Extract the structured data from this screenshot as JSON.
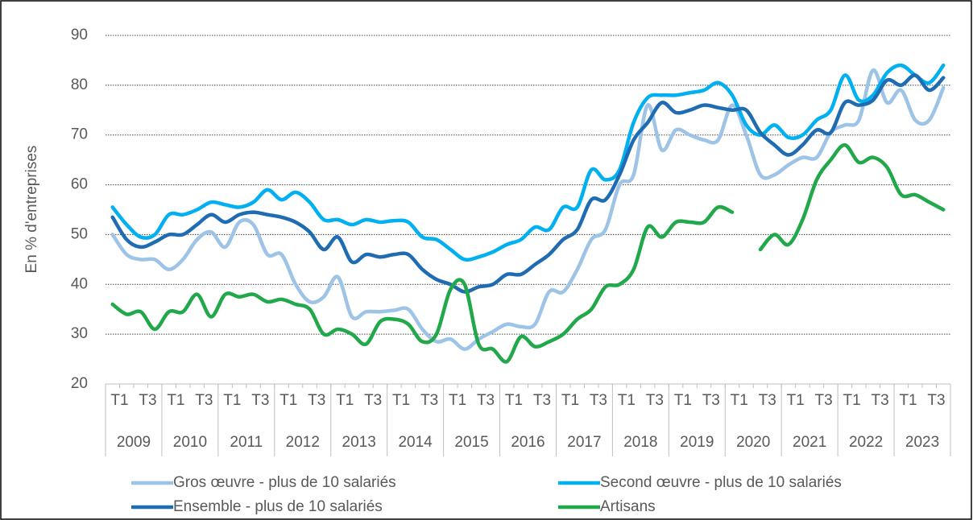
{
  "chart_data": {
    "type": "line",
    "y_axis_label": "En % d'entreprises",
    "categories": [
      "T1",
      null,
      "T3",
      null,
      "T1",
      null,
      "T3",
      null,
      "T1",
      null,
      "T3",
      null,
      "T1",
      null,
      "T3",
      null,
      "T1",
      null,
      "T3",
      null,
      "T1",
      null,
      "T3",
      null,
      "T1",
      null,
      "T3",
      null,
      "T1",
      null,
      "T3",
      null,
      "T1",
      null,
      "T3",
      null,
      "T1",
      null,
      "T3",
      null,
      "T1",
      null,
      "T3",
      null,
      "T1",
      null,
      "T3",
      null,
      "T1",
      null,
      "T3",
      null,
      "T1",
      null,
      "T3",
      null,
      "T1",
      null,
      "T3",
      null
    ],
    "years": [
      "2009",
      "2010",
      "2011",
      "2012",
      "2013",
      "2014",
      "2015",
      "2016",
      "2017",
      "2018",
      "2019",
      "2020",
      "2021",
      "2022",
      "2023"
    ],
    "ylim": [
      20,
      90
    ],
    "yticks": [
      20,
      30,
      40,
      50,
      60,
      70,
      80,
      90
    ],
    "grid": true,
    "series": [
      {
        "name": "Gros œuvre - plus de 10 salariés",
        "color": "#9dc3e6",
        "values": [
          50,
          46,
          45,
          45,
          43,
          45,
          49,
          50.5,
          47.5,
          52.5,
          52,
          46,
          46,
          40,
          36.5,
          37.5,
          41.5,
          33.5,
          34.5,
          34.5,
          34.8,
          35,
          31,
          28.5,
          29,
          27,
          29,
          30.5,
          32,
          31.5,
          32,
          38.5,
          38.5,
          43,
          49,
          51,
          60,
          62,
          76,
          67,
          71,
          70,
          69,
          69,
          76,
          70,
          62,
          62,
          64,
          65.5,
          65.5,
          70.5,
          72,
          73,
          83,
          76.5,
          79,
          73,
          73,
          79.5
        ]
      },
      {
        "name": "Second œuvre - plus de 10 salariés",
        "color": "#00b0f0",
        "values": [
          55.5,
          52,
          49.5,
          50,
          54,
          54,
          55,
          56.5,
          56,
          55.5,
          56.5,
          59,
          57,
          58.5,
          56.5,
          53,
          53,
          52,
          53,
          52.5,
          52.8,
          52.5,
          49.5,
          49,
          47,
          45,
          45.5,
          46.5,
          48,
          49,
          51.5,
          51,
          55.5,
          55.5,
          63,
          61,
          63,
          72.5,
          77.5,
          78,
          78,
          78.5,
          79,
          80.5,
          78,
          72,
          70,
          72,
          69.5,
          70,
          73,
          75,
          82,
          77,
          78,
          82.5,
          84,
          82,
          80.5,
          84
        ]
      },
      {
        "name": "Ensemble - plus de 10 salariés",
        "color": "#1f6cb3",
        "values": [
          53.5,
          49,
          47.5,
          48.5,
          50,
          50,
          52,
          54,
          52.5,
          54,
          54.5,
          54,
          53.5,
          52.5,
          50.5,
          47,
          49.5,
          44.5,
          46,
          45.5,
          46,
          46,
          43,
          41,
          40,
          38.5,
          39.5,
          40,
          42,
          42,
          44,
          46,
          49,
          51,
          57,
          57,
          62,
          69,
          72.5,
          76.5,
          74.5,
          75,
          76,
          75.5,
          75,
          75,
          70.5,
          68,
          66,
          68,
          71,
          70.5,
          76.5,
          76,
          77,
          81,
          80,
          82,
          79,
          81.5
        ]
      },
      {
        "name": "Artisans",
        "color": "#21a84a",
        "values": [
          36,
          34,
          34.5,
          31,
          34.5,
          34.5,
          38,
          33.5,
          38,
          37.5,
          38,
          36.5,
          37,
          36,
          35,
          30,
          31,
          30,
          28,
          32.5,
          33,
          32,
          28.5,
          30,
          39,
          40,
          28,
          27,
          24.5,
          29.5,
          27.5,
          28.5,
          30,
          33,
          35,
          39.5,
          40,
          43,
          51.5,
          49.5,
          52.5,
          52.5,
          52.5,
          55.5,
          54.5,
          null,
          47,
          50,
          48,
          53,
          61,
          65,
          68,
          64.5,
          65.5,
          63.5,
          58,
          58,
          56.5,
          55
        ]
      }
    ]
  }
}
